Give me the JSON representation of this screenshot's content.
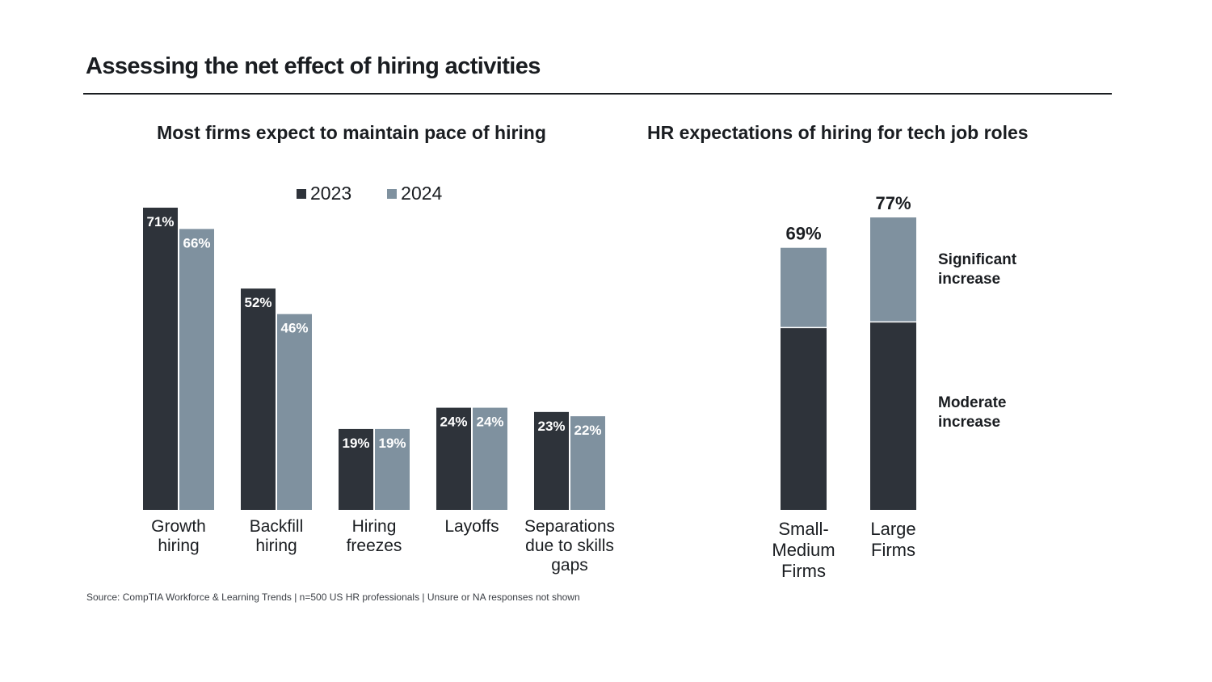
{
  "page": {
    "title": "Assessing the net effect of hiring activities",
    "source": "Source: CompTIA Workforce & Learning Trends | n=500 US HR professionals | Unsure or NA responses not shown"
  },
  "colors": {
    "dark": "#2e333a",
    "light": "#7f919f",
    "text": "#1a1d21"
  },
  "chart_data": [
    {
      "type": "bar",
      "title": "Most firms expect to maintain pace of hiring",
      "categories": [
        [
          "Growth",
          "hiring"
        ],
        [
          "Backfill",
          "hiring"
        ],
        [
          "Hiring",
          "freezes"
        ],
        [
          "Layoffs"
        ],
        [
          "Separations",
          "due to skills",
          "gaps"
        ]
      ],
      "series": [
        {
          "name": "2023",
          "values": [
            71,
            52,
            19,
            24,
            23
          ],
          "labels": [
            "71%",
            "52%",
            "19%",
            "24%",
            "23%"
          ]
        },
        {
          "name": "2024",
          "values": [
            66,
            46,
            19,
            24,
            22
          ],
          "labels": [
            "66%",
            "46%",
            "19%",
            "24%",
            "22%"
          ]
        }
      ],
      "ylim": [
        0,
        71
      ],
      "legend_position": "top",
      "grid": false
    },
    {
      "type": "bar",
      "stacked": true,
      "title": "HR expectations of hiring for tech job roles",
      "categories": [
        [
          "Small-",
          "Medium",
          "Firms"
        ],
        [
          "Large",
          "Firms"
        ]
      ],
      "series": [
        {
          "name": [
            "Moderate",
            "increase"
          ],
          "values": [
            48,
            49.5
          ]
        },
        {
          "name": [
            "Significant",
            "increase"
          ],
          "values": [
            21,
            27.5
          ]
        }
      ],
      "totals": [
        "69%",
        "77%"
      ],
      "legend_position": "right"
    }
  ]
}
